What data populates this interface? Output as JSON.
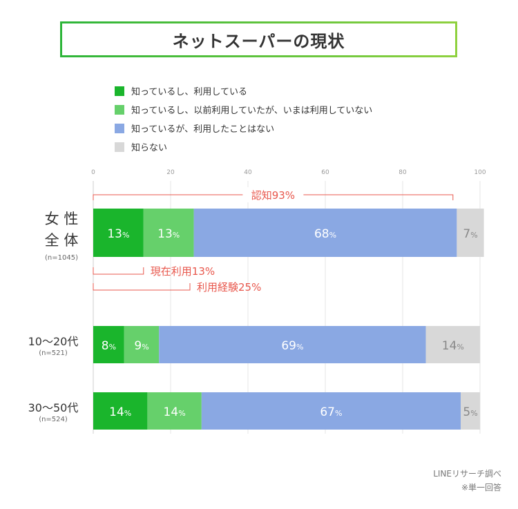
{
  "title": "ネットスーパーの現状",
  "legend": [
    {
      "label": "知っているし、利用している",
      "color": "#1ab52c"
    },
    {
      "label": "知っているし、以前利用していたが、いまは利用していない",
      "color": "#66d06b"
    },
    {
      "label": "知っているが、利用したことはない",
      "color": "#8aa8e3"
    },
    {
      "label": "知らない",
      "color": "#d8d8d8"
    }
  ],
  "chart_data": {
    "type": "bar",
    "orientation": "horizontal-stacked",
    "xlim": [
      0,
      100
    ],
    "xticks": [
      "0",
      "20",
      "40",
      "60",
      "80",
      "100"
    ],
    "categories": [
      {
        "label_lines": [
          "女 性",
          "全 体"
        ],
        "n": "(n=1045)"
      },
      {
        "label_lines": [
          "10〜20代"
        ],
        "n": "(n=521)"
      },
      {
        "label_lines": [
          "30〜50代"
        ],
        "n": "(n=524)"
      }
    ],
    "series": [
      {
        "name": "知っているし、利用している",
        "color": "#1ab52c",
        "values": [
          13,
          8,
          14
        ]
      },
      {
        "name": "知っているし、以前利用していたが、いまは利用していない",
        "color": "#66d06b",
        "values": [
          13,
          9,
          14
        ]
      },
      {
        "name": "知っているが、利用したことはない",
        "color": "#8aa8e3",
        "values": [
          68,
          69,
          67
        ]
      },
      {
        "name": "知らない",
        "color": "#d8d8d8",
        "values": [
          7,
          14,
          5
        ]
      }
    ],
    "value_suffix": "%",
    "annotations": [
      {
        "label": "認知93%",
        "from": 0,
        "to": 93,
        "row": 0,
        "position": "above"
      },
      {
        "label": "現在利用13%",
        "from": 0,
        "to": 13,
        "row": 0,
        "position": "below-1"
      },
      {
        "label": "利用経験25%",
        "from": 0,
        "to": 25,
        "row": 0,
        "position": "below-2"
      }
    ],
    "annotation_color": "#e8574c"
  },
  "footer": {
    "source": "LINEリサーチ調べ",
    "note": "※単一回答"
  }
}
